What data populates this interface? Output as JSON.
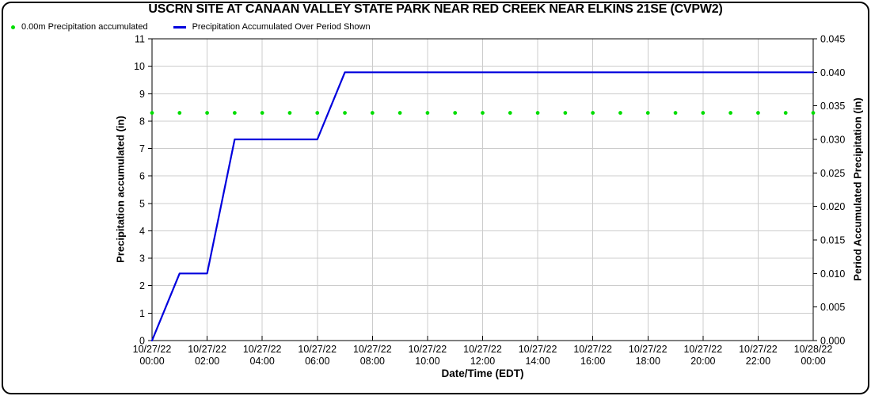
{
  "title": "USCRN SITE AT CANAAN VALLEY STATE PARK NEAR RED CREEK NEAR ELKINS 21SE (CVPW2)",
  "legend": [
    {
      "marker": "dot",
      "color": "#00dd00",
      "label": "0.00m Precipitation accumulated"
    },
    {
      "marker": "line",
      "color": "#0000dd",
      "label": "Precipitation Accumulated Over Period Shown"
    }
  ],
  "colors": {
    "background": "#ffffff",
    "frame": "#000000",
    "grid": "#cccccc",
    "axis": "#000000",
    "accumulation_line": "#0000dd",
    "zero_precip_dots": "#00dd00",
    "text": "#000000"
  },
  "chart_data": {
    "type": "line",
    "title": "USCRN SITE AT CANAAN VALLEY STATE PARK NEAR RED CREEK NEAR ELKINS 21SE (CVPW2)",
    "xlabel": "Date/Time (EDT)",
    "ylabel_left": "Precipitation accumulated (in)",
    "ylabel_right": "Period Accumulated Precipitation (in)",
    "grid": true,
    "legend_position": "top-left",
    "x_hours": [
      0,
      1,
      2,
      3,
      4,
      5,
      6,
      7,
      8,
      9,
      10,
      11,
      12,
      13,
      14,
      15,
      16,
      17,
      18,
      19,
      20,
      21,
      22,
      23,
      24
    ],
    "x_tick_hours": [
      0,
      2,
      4,
      6,
      8,
      10,
      12,
      14,
      16,
      18,
      20,
      22,
      24
    ],
    "x_tick_labels": [
      {
        "date": "10/27/22",
        "time": "00:00"
      },
      {
        "date": "10/27/22",
        "time": "02:00"
      },
      {
        "date": "10/27/22",
        "time": "04:00"
      },
      {
        "date": "10/27/22",
        "time": "06:00"
      },
      {
        "date": "10/27/22",
        "time": "08:00"
      },
      {
        "date": "10/27/22",
        "time": "10:00"
      },
      {
        "date": "10/27/22",
        "time": "12:00"
      },
      {
        "date": "10/27/22",
        "time": "14:00"
      },
      {
        "date": "10/27/22",
        "time": "16:00"
      },
      {
        "date": "10/27/22",
        "time": "18:00"
      },
      {
        "date": "10/27/22",
        "time": "20:00"
      },
      {
        "date": "10/27/22",
        "time": "22:00"
      },
      {
        "date": "10/28/22",
        "time": "00:00"
      }
    ],
    "left_axis": {
      "min": 0,
      "max": 11,
      "tick_step": 1,
      "ticks": [
        "0",
        "1",
        "2",
        "3",
        "4",
        "5",
        "6",
        "7",
        "8",
        "9",
        "10",
        "11"
      ]
    },
    "right_axis": {
      "min": 0,
      "max": 0.045,
      "tick_step": 0.005,
      "ticks": [
        "0.000",
        "0.005",
        "0.010",
        "0.015",
        "0.020",
        "0.025",
        "0.030",
        "0.035",
        "0.040",
        "0.045"
      ]
    },
    "series": [
      {
        "name": "Precipitation Accumulated Over Period Shown",
        "style": "line",
        "axis": "right",
        "color": "#0000dd",
        "values": [
          0.0,
          0.01,
          0.01,
          0.03,
          0.03,
          0.03,
          0.03,
          0.04,
          0.04,
          0.04,
          0.04,
          0.04,
          0.04,
          0.04,
          0.04,
          0.04,
          0.04,
          0.04,
          0.04,
          0.04,
          0.04,
          0.04,
          0.04,
          0.04,
          0.04
        ]
      },
      {
        "name": "0.00m Precipitation accumulated",
        "style": "points",
        "axis": "left",
        "color": "#00dd00",
        "reported_value": "0.00",
        "plot_level": 8.3,
        "values": [
          8.3,
          8.3,
          8.3,
          8.3,
          8.3,
          8.3,
          8.3,
          8.3,
          8.3,
          8.3,
          8.3,
          8.3,
          8.3,
          8.3,
          8.3,
          8.3,
          8.3,
          8.3,
          8.3,
          8.3,
          8.3,
          8.3,
          8.3,
          8.3,
          8.3
        ]
      }
    ]
  }
}
